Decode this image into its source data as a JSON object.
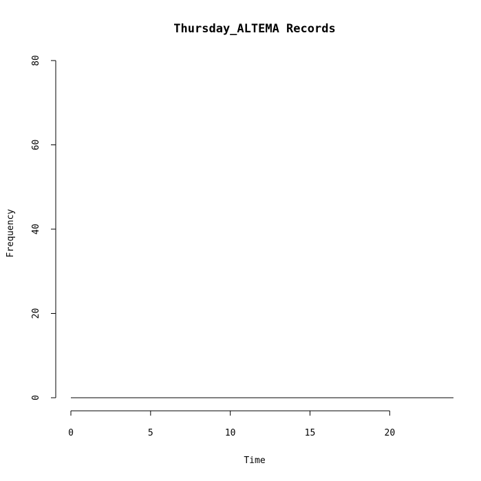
{
  "chart_data": {
    "type": "line",
    "title": "Thursday_ALTEMA Records",
    "xlabel": "Time",
    "ylabel": "Frequency",
    "xlim": [
      0,
      24
    ],
    "ylim": [
      0,
      80
    ],
    "x_ticks": [
      0,
      5,
      10,
      15,
      20
    ],
    "y_ticks": [
      0,
      20,
      40,
      60,
      80
    ],
    "series": [
      {
        "x": [
          0,
          24
        ],
        "y": [
          0,
          0
        ]
      }
    ],
    "grid": false,
    "legend": "none"
  }
}
